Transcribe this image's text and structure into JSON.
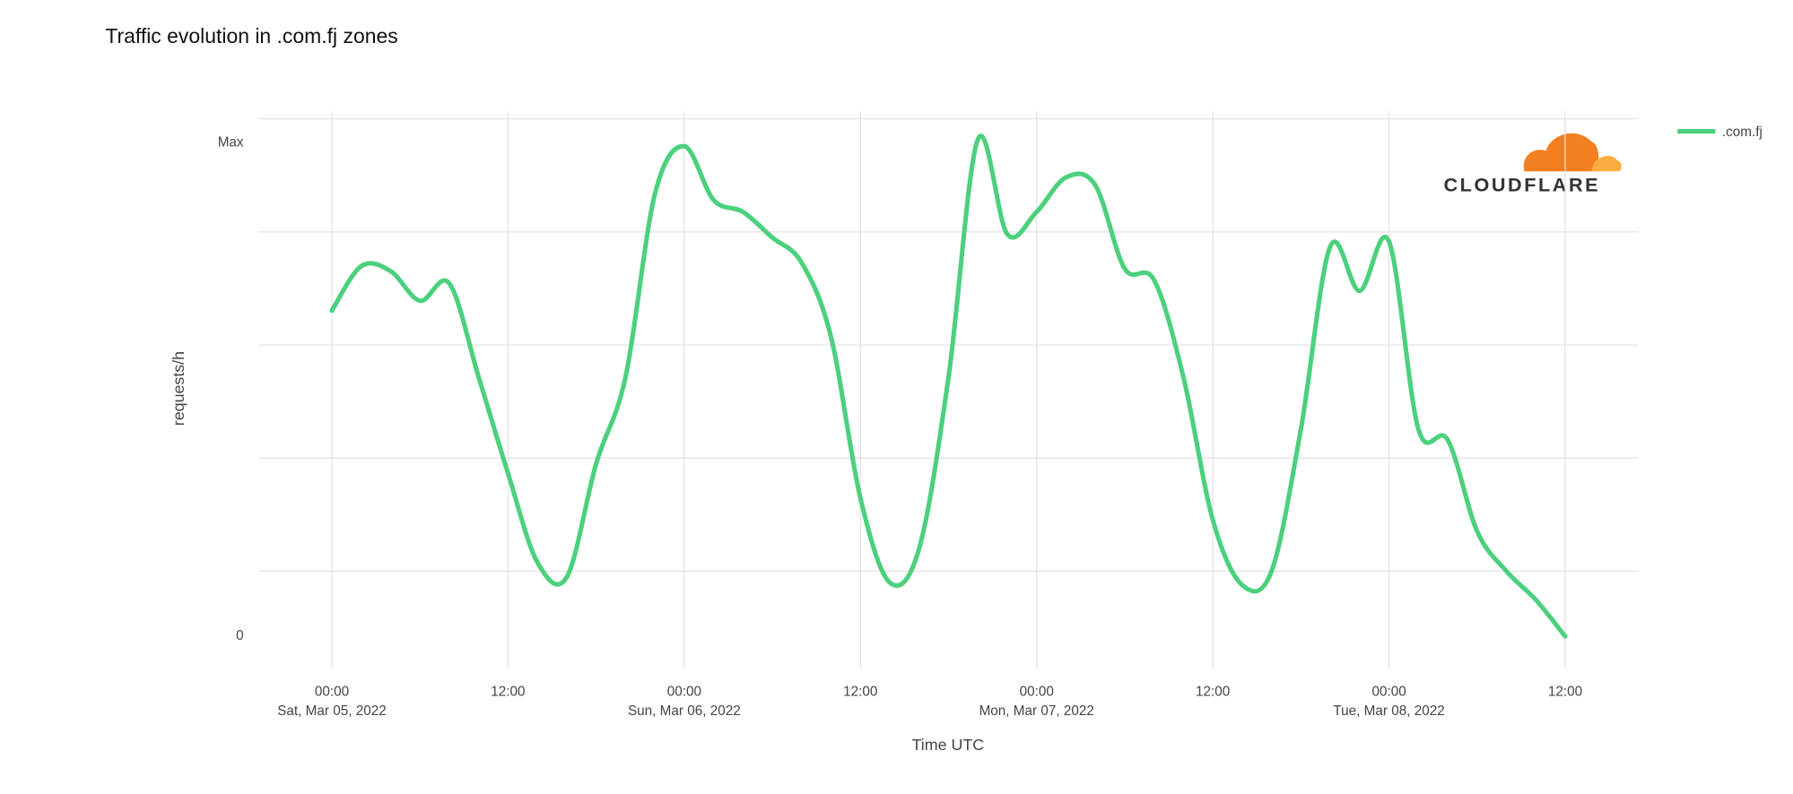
{
  "chart_data": {
    "type": "line",
    "title": "Traffic evolution in .com.fj zones",
    "watermark": "CLOUDFLARE",
    "x_label": "Time UTC",
    "y_label": "requests/h",
    "x": [
      "2022-03-05T00:00",
      "2022-03-05T02:00",
      "2022-03-05T04:00",
      "2022-03-05T06:00",
      "2022-03-05T08:00",
      "2022-03-05T10:00",
      "2022-03-05T12:00",
      "2022-03-05T14:00",
      "2022-03-05T16:00",
      "2022-03-05T18:00",
      "2022-03-05T20:00",
      "2022-03-05T22:00",
      "2022-03-06T00:00",
      "2022-03-06T02:00",
      "2022-03-06T04:00",
      "2022-03-06T06:00",
      "2022-03-06T08:00",
      "2022-03-06T10:00",
      "2022-03-06T12:00",
      "2022-03-06T14:00",
      "2022-03-06T16:00",
      "2022-03-06T18:00",
      "2022-03-06T20:00",
      "2022-03-06T22:00",
      "2022-03-07T00:00",
      "2022-03-07T02:00",
      "2022-03-07T04:00",
      "2022-03-07T06:00",
      "2022-03-07T08:00",
      "2022-03-07T10:00",
      "2022-03-07T12:00",
      "2022-03-07T14:00",
      "2022-03-07T16:00",
      "2022-03-07T18:00",
      "2022-03-07T20:00",
      "2022-03-07T22:00",
      "2022-03-08T00:00",
      "2022-03-08T02:00",
      "2022-03-08T04:00",
      "2022-03-08T06:00",
      "2022-03-08T08:00",
      "2022-03-08T10:00",
      "2022-03-08T12:00"
    ],
    "series": [
      {
        "name": ".com.fj",
        "color": "#4cd07d",
        "values": [
          66,
          75,
          74,
          68,
          71.5,
          52.5,
          33,
          15,
          12,
          35,
          52.5,
          89.6,
          99.3,
          88.4,
          86,
          80.8,
          75.7,
          60.6,
          28,
          10.9,
          17.8,
          52.5,
          100.7,
          81.5,
          86,
          93,
          91.4,
          74.5,
          72.2,
          52.5,
          23.6,
          10.4,
          13.2,
          42,
          79,
          70,
          80,
          42,
          39.8,
          21.3,
          13.2,
          7.4,
          0
        ]
      }
    ],
    "xlim": [
      "2022-03-04T19:00",
      "2022-03-08T17:00"
    ],
    "xticks": [
      {
        "value": "2022-03-05T00:00",
        "label": [
          "00:00",
          "Sat, Mar 05, 2022"
        ]
      },
      {
        "value": "2022-03-05T12:00",
        "label": [
          "12:00"
        ]
      },
      {
        "value": "2022-03-06T00:00",
        "label": [
          "00:00",
          "Sun, Mar 06, 2022"
        ]
      },
      {
        "value": "2022-03-06T12:00",
        "label": [
          "12:00"
        ]
      },
      {
        "value": "2022-03-07T00:00",
        "label": [
          "00:00",
          "Mon, Mar 07, 2022"
        ]
      },
      {
        "value": "2022-03-07T12:00",
        "label": [
          "12:00"
        ]
      },
      {
        "value": "2022-03-08T00:00",
        "label": [
          "00:00",
          "Tue, Mar 08, 2022"
        ]
      },
      {
        "value": "2022-03-08T12:00",
        "label": [
          "12:00"
        ]
      }
    ],
    "ylim": [
      -5,
      105
    ],
    "yticks": [
      0,
      {
        "value": 100,
        "label": "Max"
      }
    ],
    "grid": true,
    "legend": "top-right"
  }
}
